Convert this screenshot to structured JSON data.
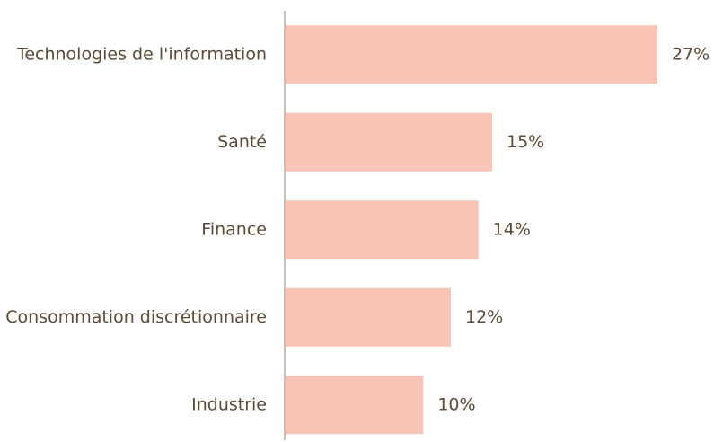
{
  "chart_data": {
    "type": "bar",
    "orientation": "horizontal",
    "categories": [
      "Technologies de l'information",
      "Santé",
      "Finance",
      "Consommation discrétionnaire",
      "Industrie"
    ],
    "values": [
      27,
      15,
      14,
      12,
      10
    ],
    "value_labels": [
      "27%",
      "15%",
      "14%",
      "12%",
      "10%"
    ],
    "color": "#f8c4b5"
  }
}
